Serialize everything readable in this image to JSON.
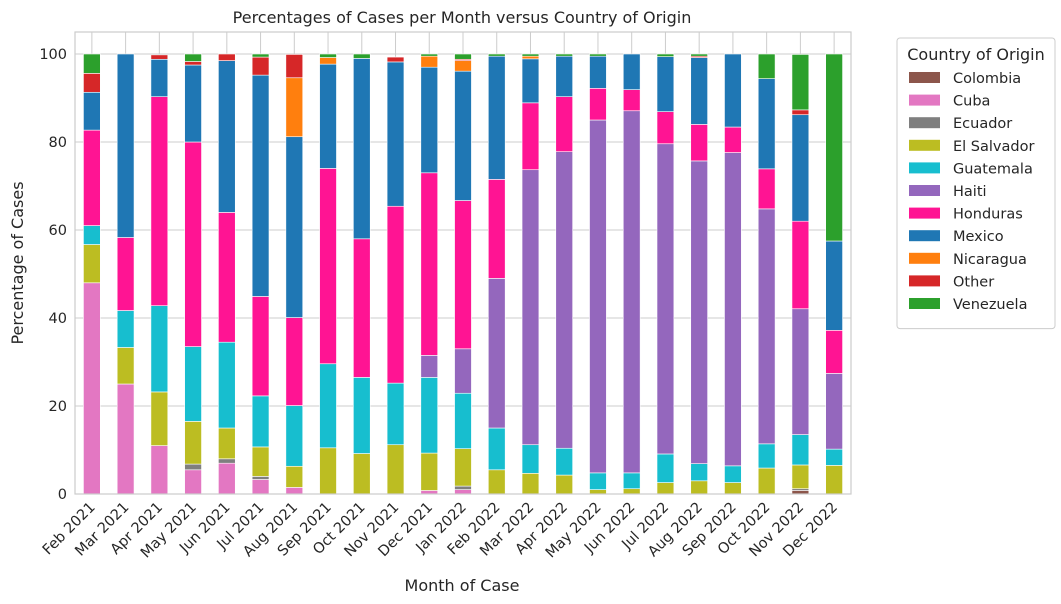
{
  "chart_data": {
    "type": "bar",
    "stacked": true,
    "title": "Percentages of Cases per Month versus Country of Origin",
    "xlabel": "Month of Case",
    "ylabel": "Percentage of Cases",
    "ylim": [
      0,
      105
    ],
    "yticks": [
      0,
      20,
      40,
      60,
      80,
      100
    ],
    "grid": true,
    "legend": {
      "title": "Country of Origin",
      "placement": "outside-right"
    },
    "categories": [
      "Feb 2021",
      "Mar 2021",
      "Apr 2021",
      "May 2021",
      "Jun 2021",
      "Jul 2021",
      "Aug 2021",
      "Sep 2021",
      "Oct 2021",
      "Nov 2021",
      "Dec 2021",
      "Jan 2022",
      "Feb 2022",
      "Mar 2022",
      "Apr 2022",
      "May 2022",
      "Jun 2022",
      "Jul 2022",
      "Aug 2022",
      "Sep 2022",
      "Oct 2022",
      "Nov 2022",
      "Dec 2022"
    ],
    "series": [
      {
        "name": "Colombia",
        "color": "#8c564b",
        "values": [
          0,
          0,
          0,
          0,
          0,
          0,
          0,
          0,
          0,
          0,
          0,
          0,
          0,
          0,
          0,
          0,
          0,
          0,
          0,
          0,
          0,
          0.8,
          0
        ]
      },
      {
        "name": "Cuba",
        "color": "#e377c2",
        "values": [
          48,
          25,
          11,
          5.5,
          7,
          3.3,
          1.5,
          0,
          0,
          0,
          0.8,
          1,
          0,
          0,
          0,
          0,
          0,
          0,
          0,
          0,
          0,
          0,
          0
        ]
      },
      {
        "name": "Ecuador",
        "color": "#7f7f7f",
        "values": [
          0,
          0,
          0,
          1.3,
          1,
          0.7,
          0,
          0,
          0,
          0,
          0,
          0.8,
          0,
          0,
          0,
          0,
          0,
          0,
          0,
          0,
          0,
          0.4,
          0
        ]
      },
      {
        "name": "El Salvador",
        "color": "#bcbd22",
        "values": [
          8.7,
          8.3,
          12.2,
          9.7,
          7,
          6.7,
          4.8,
          10.5,
          9.2,
          11.2,
          8.5,
          8.5,
          5.5,
          4.7,
          4.3,
          1,
          1.2,
          2.6,
          3,
          2.6,
          5.9,
          5.4,
          6.5
        ]
      },
      {
        "name": "Guatemala",
        "color": "#17becf",
        "values": [
          4.3,
          8.4,
          19.6,
          17,
          19.5,
          11.6,
          13.8,
          19.1,
          17.3,
          14,
          17.2,
          12.6,
          9.5,
          6.5,
          6.1,
          3.8,
          3.6,
          6.5,
          3.9,
          3.8,
          5.5,
          6.9,
          3.7
        ]
      },
      {
        "name": "Haiti",
        "color": "#9467bd",
        "values": [
          0,
          0,
          0,
          0,
          0,
          0,
          0,
          0,
          0,
          0,
          5,
          10.1,
          34,
          62.5,
          67.4,
          80.2,
          82.3,
          70.5,
          68.8,
          71.2,
          53.4,
          28.6,
          17.2
        ]
      },
      {
        "name": "Honduras",
        "color": "#ff1493",
        "values": [
          21.7,
          16.6,
          47.5,
          46.5,
          29.5,
          22.6,
          20,
          44.4,
          31.5,
          40.2,
          41.5,
          33.7,
          22.5,
          15.2,
          12.5,
          7.2,
          4.8,
          7.3,
          8.3,
          5.8,
          9.1,
          19.9,
          9.8
        ]
      },
      {
        "name": "Mexico",
        "color": "#1f77b4",
        "values": [
          8.6,
          41.7,
          8.5,
          17.5,
          34.5,
          50.3,
          41.1,
          23.7,
          41,
          32.8,
          24,
          29.4,
          28,
          10,
          9.2,
          7.3,
          8.1,
          12.5,
          15.2,
          16.6,
          20.5,
          24.2,
          20.3
        ]
      },
      {
        "name": "Nicaragua",
        "color": "#ff7f0e",
        "values": [
          0,
          0,
          0,
          0,
          0,
          0,
          13.4,
          1.5,
          0,
          0,
          2.5,
          2.4,
          0,
          0.6,
          0,
          0,
          0,
          0,
          0,
          0,
          0,
          0,
          0
        ]
      },
      {
        "name": "Other",
        "color": "#d62728",
        "values": [
          4.3,
          0,
          1,
          0.8,
          1.5,
          4.1,
          5.3,
          0,
          0,
          1.1,
          0,
          0.3,
          0,
          0,
          0,
          0,
          0,
          0,
          0.3,
          0,
          0,
          1.1,
          0
        ]
      },
      {
        "name": "Venezuela",
        "color": "#2ca02c",
        "values": [
          4.4,
          0,
          0,
          1.7,
          0,
          0.7,
          0,
          0.8,
          1,
          0,
          0.5,
          1.2,
          0.5,
          0.5,
          0.5,
          0.5,
          0,
          0.6,
          0.5,
          0,
          5.6,
          12.6,
          42.5
        ]
      }
    ]
  }
}
